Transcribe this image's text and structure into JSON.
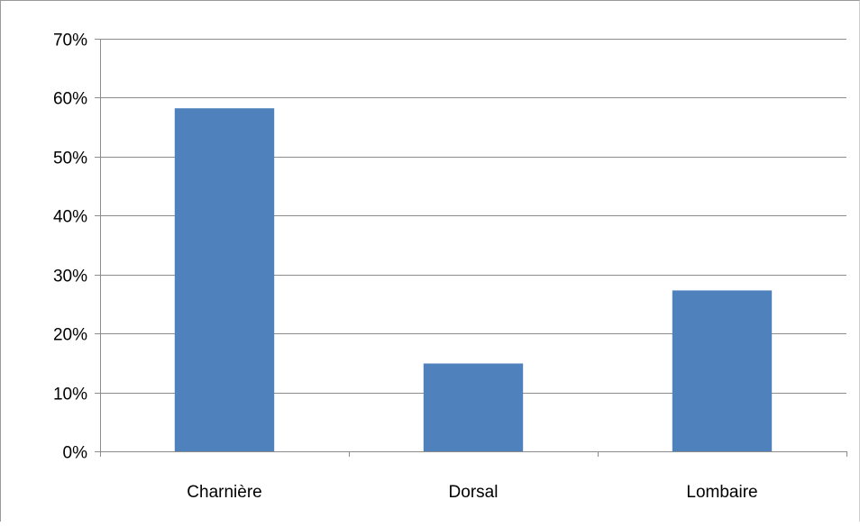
{
  "chart_data": {
    "type": "bar",
    "title": "",
    "xlabel": "",
    "ylabel": "",
    "categories": [
      "Charnière",
      "Dorsal",
      "Lombaire"
    ],
    "values": [
      58.2,
      14.9,
      27.3
    ],
    "value_unit": "%",
    "ylim": [
      0,
      70
    ],
    "ytick_values": [
      0,
      10,
      20,
      30,
      40,
      50,
      60,
      70
    ],
    "ytick_labels": [
      "0%",
      "10%",
      "20%",
      "30%",
      "40%",
      "50%",
      "60%",
      "70%"
    ],
    "grid": true,
    "legend": "none",
    "bar_color": "#4f81bd",
    "grid_color": "#8c8c8c",
    "axis_color": "#8c8c8c"
  }
}
